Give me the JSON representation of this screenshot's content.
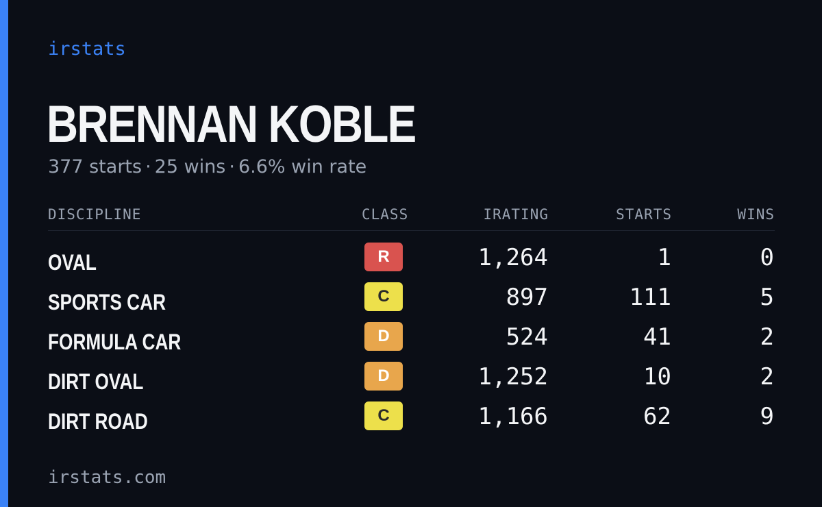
{
  "brand": "irstats",
  "driver": {
    "name": "BRENNAN KOBLE",
    "starts": "377 starts",
    "wins": "25 wins",
    "win_rate": "6.6% win rate",
    "separator": "·"
  },
  "table": {
    "headers": {
      "discipline": "DISCIPLINE",
      "class": "CLASS",
      "irating": "IRATING",
      "starts": "STARTS",
      "wins": "WINS"
    },
    "rows": [
      {
        "discipline": "OVAL",
        "class": "R",
        "irating": "1,264",
        "starts": "1",
        "wins": "0"
      },
      {
        "discipline": "SPORTS CAR",
        "class": "C",
        "irating": "897",
        "starts": "111",
        "wins": "5"
      },
      {
        "discipline": "FORMULA CAR",
        "class": "D",
        "irating": "524",
        "starts": "41",
        "wins": "2"
      },
      {
        "discipline": "DIRT OVAL",
        "class": "D",
        "irating": "1,252",
        "starts": "10",
        "wins": "2"
      },
      {
        "discipline": "DIRT ROAD",
        "class": "C",
        "irating": "1,166",
        "starts": "62",
        "wins": "9"
      }
    ]
  },
  "class_colors": {
    "R": {
      "bg": "#d9534f",
      "fg": "#ffffff"
    },
    "D": {
      "bg": "#e8a64c",
      "fg": "#ffffff"
    },
    "C": {
      "bg": "#ede04b",
      "fg": "#2a2a2a"
    }
  },
  "colors": {
    "accent": "#3b82f6",
    "background": "#0b0e16",
    "muted_text": "#9aa3b2",
    "primary_text": "#f4f5f7"
  },
  "footer": "irstats.com"
}
